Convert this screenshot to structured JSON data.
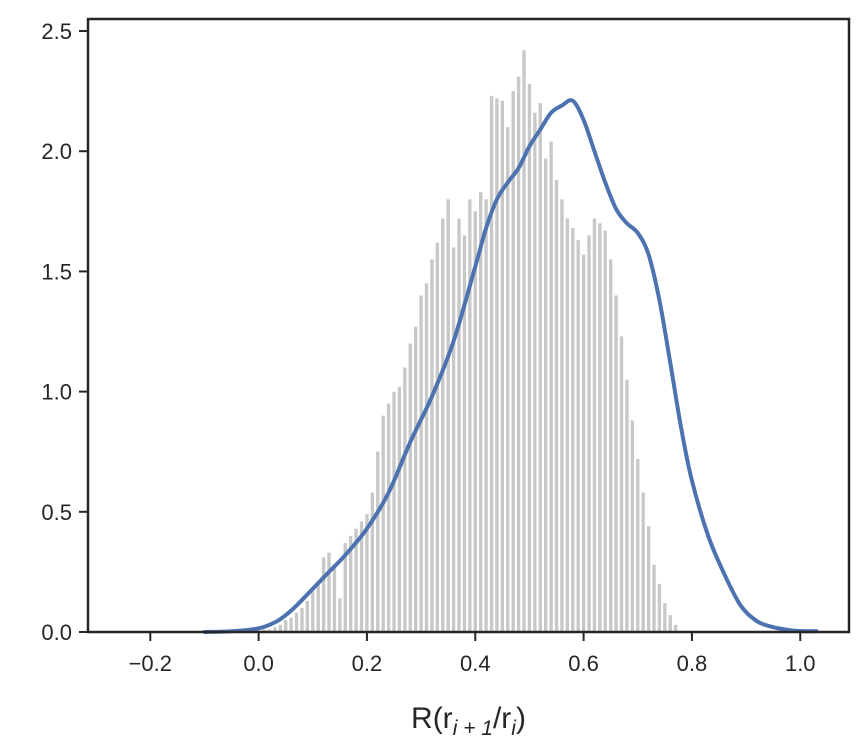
{
  "chart_data": {
    "type": "bar",
    "title": "",
    "xlabel": "R(r_{i+1}/r_i)",
    "xlabel_parts": {
      "main": "R(r",
      "sub1": "i + 1",
      "mid": "/r",
      "sub2": "i",
      "end": ")"
    },
    "ylabel": "",
    "xlim": [
      -0.315,
      1.09
    ],
    "ylim": [
      0,
      2.55
    ],
    "xticks": [
      -0.2,
      0.0,
      0.2,
      0.4,
      0.6,
      0.8,
      1.0
    ],
    "xtick_labels": [
      "−0.2",
      "0.0",
      "0.2",
      "0.4",
      "0.6",
      "0.8",
      "1.0"
    ],
    "yticks": [
      0.0,
      0.5,
      1.0,
      1.5,
      2.0,
      2.5
    ],
    "ytick_labels": [
      "0.0",
      "0.5",
      "1.0",
      "1.5",
      "2.0",
      "2.5"
    ],
    "grid": false,
    "histogram": {
      "bin_start": 0.005,
      "bin_width": 0.01,
      "color": "#c8c8c8",
      "values": [
        0.01,
        0.01,
        0.02,
        0.03,
        0.05,
        0.06,
        0.08,
        0.1,
        0.13,
        0.17,
        0.21,
        0.31,
        0.33,
        0.27,
        0.14,
        0.37,
        0.4,
        0.43,
        0.46,
        0.49,
        0.58,
        0.75,
        0.9,
        0.95,
        1.0,
        1.02,
        1.1,
        1.2,
        1.27,
        1.4,
        1.45,
        1.55,
        1.62,
        1.72,
        1.8,
        1.6,
        1.72,
        1.65,
        1.8,
        1.75,
        1.83,
        1.8,
        2.23,
        2.22,
        2.21,
        2.1,
        2.25,
        2.31,
        2.42,
        2.28,
        2.16,
        2.2,
        1.97,
        2.04,
        1.88,
        1.8,
        1.72,
        1.68,
        1.63,
        1.57,
        1.65,
        1.72,
        1.7,
        1.67,
        1.55,
        1.4,
        1.23,
        1.05,
        0.88,
        0.72,
        0.58,
        0.44,
        0.28,
        0.2,
        0.12,
        0.07,
        0.03
      ]
    },
    "series": [
      {
        "type": "kde_line",
        "color": "#4c72b0",
        "x": [
          -0.1,
          -0.05,
          0.0,
          0.03,
          0.05,
          0.07,
          0.1,
          0.13,
          0.16,
          0.2,
          0.24,
          0.28,
          0.32,
          0.36,
          0.4,
          0.42,
          0.44,
          0.46,
          0.48,
          0.5,
          0.52,
          0.54,
          0.56,
          0.58,
          0.6,
          0.62,
          0.64,
          0.66,
          0.68,
          0.7,
          0.72,
          0.74,
          0.76,
          0.78,
          0.8,
          0.83,
          0.86,
          0.89,
          0.92,
          0.95,
          0.98,
          1.0,
          1.03
        ],
        "y": [
          0.0,
          0.003,
          0.015,
          0.04,
          0.07,
          0.11,
          0.18,
          0.25,
          0.32,
          0.43,
          0.58,
          0.79,
          0.98,
          1.21,
          1.52,
          1.68,
          1.8,
          1.87,
          1.93,
          2.02,
          2.09,
          2.16,
          2.19,
          2.21,
          2.13,
          2.0,
          1.87,
          1.76,
          1.7,
          1.66,
          1.57,
          1.38,
          1.12,
          0.85,
          0.63,
          0.4,
          0.24,
          0.11,
          0.045,
          0.02,
          0.008,
          0.004,
          0.003
        ]
      }
    ]
  }
}
